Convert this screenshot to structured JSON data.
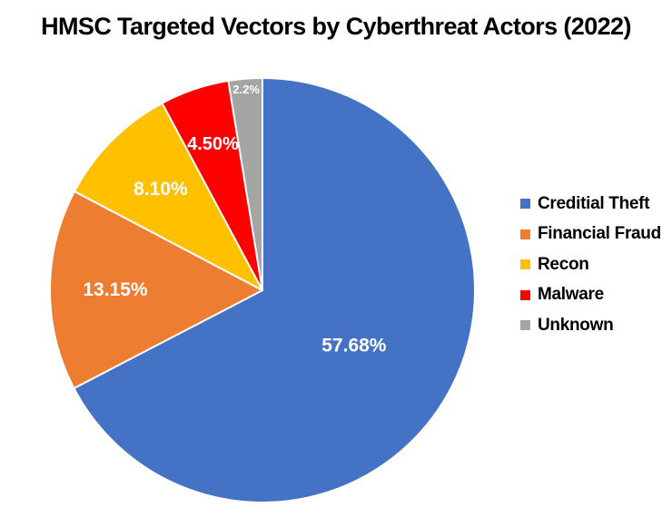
{
  "chart_data": {
    "type": "pie",
    "title": "HMSC Targeted Vectors by Cyberthreat Actors (2022)",
    "start_angle_deg": 0,
    "direction": "clockwise",
    "legend_position": "right",
    "slices": [
      {
        "name": "Creditial Theft",
        "value": 57.68,
        "label": "57.68%",
        "color": "#4472C4",
        "label_color": "#ffffff"
      },
      {
        "name": "Financial Fraud",
        "value": 13.15,
        "label": "13.15%",
        "color": "#ED7D31",
        "label_color": "#ffffff"
      },
      {
        "name": "Recon",
        "value": 8.1,
        "label": "8.10%",
        "color": "#FFC000",
        "label_color": "#ffffff"
      },
      {
        "name": "Malware",
        "value": 4.5,
        "label": "4.50%",
        "color": "#FF0000",
        "label_color": "#ffffff"
      },
      {
        "name": "Unknown",
        "value": 2.2,
        "label": "2.2%",
        "color": "#A5A5A5",
        "label_color": "#ffffff"
      }
    ]
  }
}
